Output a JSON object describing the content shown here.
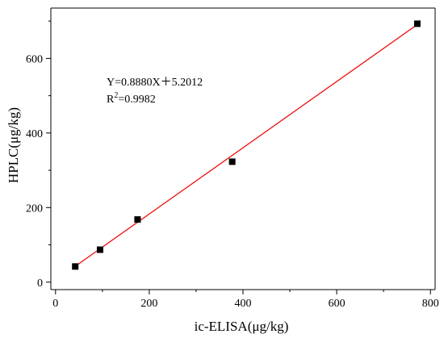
{
  "chart_data": {
    "type": "scatter",
    "xlabel": "ic-ELISA(μg/kg)",
    "ylabel": "HPLC(μg/kg)",
    "xlim": [
      -10,
      810
    ],
    "ylim": [
      -20,
      735
    ],
    "x_ticks": [
      0,
      200,
      400,
      600,
      800
    ],
    "y_ticks": [
      0,
      200,
      400,
      600
    ],
    "x_tick_labels": [
      "0",
      "200",
      "400",
      "600",
      "800"
    ],
    "y_tick_labels": [
      "0",
      "200",
      "400",
      "600"
    ],
    "grid": false,
    "series": [
      {
        "marker": "square",
        "color": "#000000",
        "points": [
          {
            "x": 42,
            "y": 42
          },
          {
            "x": 95,
            "y": 87
          },
          {
            "x": 175,
            "y": 168
          },
          {
            "x": 377,
            "y": 323
          },
          {
            "x": 772,
            "y": 693
          }
        ]
      }
    ],
    "fit_line": {
      "color": "#ee1111",
      "slope": 0.888,
      "intercept": 5.2012,
      "x_range": [
        40,
        772
      ]
    },
    "annotations": {
      "equation": "Y=0.8880X＋5.2012",
      "r2_prefix": "R",
      "r2_sup": "2",
      "r2_suffix": "=0.9982"
    }
  }
}
